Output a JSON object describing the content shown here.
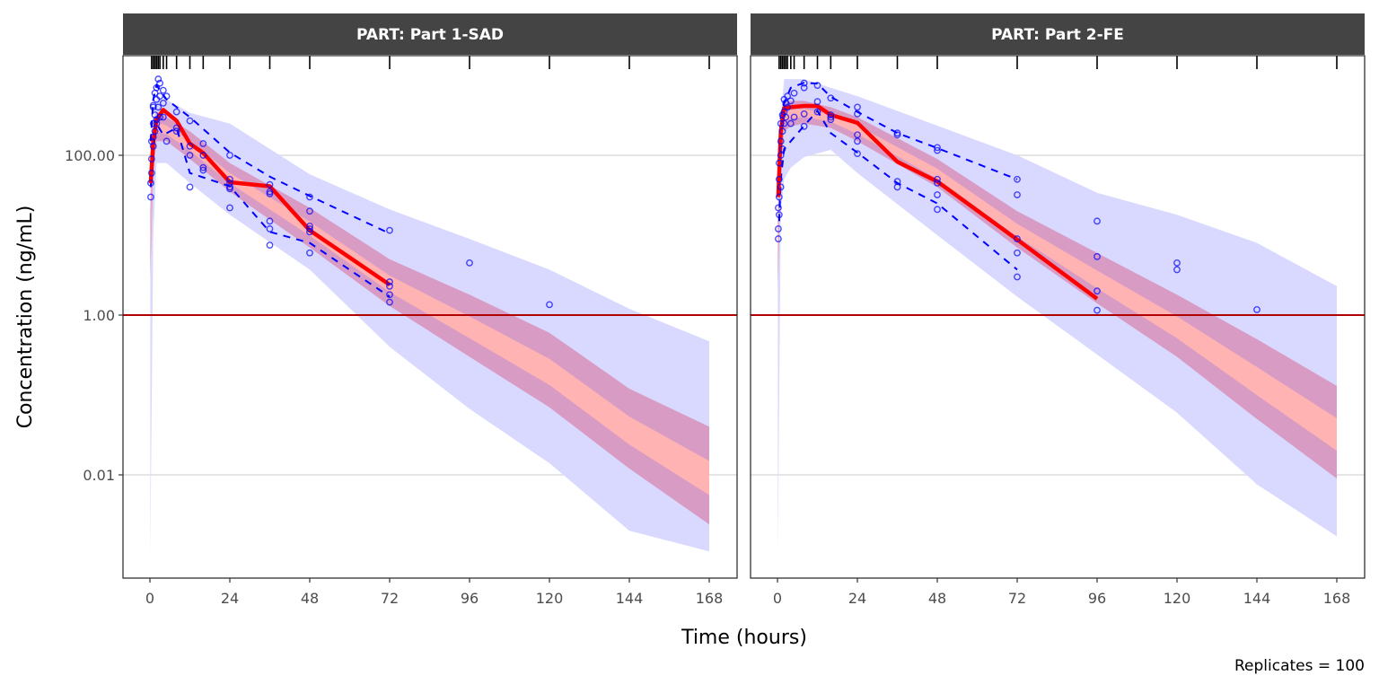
{
  "chart_data": {
    "type": "line",
    "subtype": "visual predictive check",
    "xlabel": "Time (hours)",
    "ylabel": "Concentration (ng/mL)",
    "caption": "Replicates = 100",
    "x_ticks": [
      0,
      24,
      48,
      72,
      96,
      120,
      144,
      168
    ],
    "x_tick_labels": [
      "0",
      "24",
      "48",
      "72",
      "96",
      "120",
      "144",
      "168"
    ],
    "y_scale": "log10",
    "y_ticks": [
      100,
      1,
      0.01
    ],
    "y_tick_labels": [
      "100.00",
      "1.00",
      "0.01"
    ],
    "xlim": [
      -7,
      177
    ],
    "ylim": [
      0.00051,
      1780
    ],
    "lloq_line": 1,
    "bin_rug_times": [
      0.5,
      1,
      1.5,
      2,
      2.5,
      3,
      4,
      5,
      8,
      12,
      16,
      24,
      36,
      48,
      72,
      96,
      120,
      144,
      168
    ],
    "colors": {
      "strip": "#444444",
      "outer": "#d9d9ff",
      "median_ci": "#d89cc4",
      "median_core": "#ffb3b3",
      "obs_median": "#ff0000",
      "obs_pct": "#0000ff",
      "lloq": "#b00000",
      "grid": "#e5e5e5"
    },
    "panels": [
      {
        "title": "PART: Part 1-SAD",
        "band_t": [
          0.1,
          1,
          2,
          5,
          12,
          24,
          48,
          72,
          96,
          120,
          144,
          168
        ],
        "outer_hi": [
          40,
          250,
          500,
          500,
          340,
          250,
          58,
          21,
          9,
          3.7,
          1.2,
          0.47
        ],
        "outer_lo": [
          0.001,
          10,
          80,
          80,
          45,
          18,
          3.7,
          0.4,
          0.067,
          0.014,
          0.002,
          0.0011
        ],
        "ci_hi": [
          20,
          200,
          350,
          300,
          200,
          80,
          22,
          5,
          1.8,
          0.6,
          0.12,
          0.04
        ],
        "ci_lo": [
          3,
          60,
          150,
          150,
          90,
          35,
          7,
          1.3,
          0.3,
          0.07,
          0.012,
          0.0024
        ],
        "obs_median": {
          "t": [
            0.25,
            1,
            2,
            4,
            8,
            12,
            16,
            24,
            36,
            48,
            72
          ],
          "v": [
            45,
            150,
            280,
            370,
            270,
            140,
            107,
            46,
            41,
            11.5,
            2.4
          ]
        },
        "obs_p95": {
          "t": [
            0.25,
            1,
            2,
            5,
            12,
            24,
            36,
            48,
            72
          ],
          "v": [
            150,
            500,
            750,
            500,
            300,
            108,
            54,
            31,
            10.5
          ]
        },
        "obs_p5": {
          "t": [
            0.25,
            1,
            2,
            4,
            8,
            12,
            24,
            36,
            48,
            72
          ],
          "v": [
            40,
            120,
            250,
            180,
            220,
            60,
            41,
            11,
            8,
            1.7
          ]
        },
        "obs_points": {
          "t": [
            0.25,
            0.25,
            0.5,
            0.5,
            0.5,
            1,
            1,
            1,
            1,
            1,
            1.5,
            1.5,
            1.5,
            2,
            2,
            2,
            2,
            2.5,
            2.5,
            3,
            3,
            3,
            4,
            4,
            4,
            5,
            5,
            8,
            8,
            8,
            12,
            12,
            12,
            12,
            16,
            16,
            16,
            16,
            24,
            24,
            24,
            24,
            24,
            24,
            36,
            36,
            36,
            36,
            36,
            36,
            48,
            48,
            48,
            48,
            48,
            48,
            72,
            72,
            72,
            72,
            72,
            96,
            120
          ],
          "v": [
            30,
            45,
            60,
            90,
            150,
            170,
            250,
            400,
            420,
            130,
            320,
            600,
            200,
            700,
            500,
            280,
            250,
            900,
            400,
            800,
            550,
            300,
            650,
            450,
            300,
            550,
            150,
            350,
            220,
            200,
            270,
            130,
            100,
            40,
            140,
            100,
            70,
            65,
            100,
            50,
            45,
            40,
            38,
            22,
            43,
            33,
            35,
            15,
            12,
            7.5,
            30,
            20,
            12,
            13,
            11,
            6,
            11.5,
            2.6,
            2.3,
            1.8,
            1.45,
            4.5,
            1.35
          ]
        }
      },
      {
        "title": "PART: Part 2-FE",
        "band_t": [
          0.1,
          1,
          2,
          4,
          8,
          16,
          24,
          48,
          72,
          96,
          120,
          144,
          168
        ],
        "outer_hi": [
          30,
          300,
          900,
          900,
          900,
          700,
          550,
          235,
          100,
          34,
          18,
          8,
          2.3
        ],
        "outer_lo": [
          0.001,
          20,
          50,
          70,
          95,
          117,
          60,
          10,
          1.7,
          0.32,
          0.06,
          0.0076,
          0.0017
        ],
        "ci_hi": [
          15,
          250,
          450,
          480,
          480,
          400,
          300,
          90,
          20,
          6,
          1.8,
          0.5,
          0.13
        ],
        "ci_lo": [
          2,
          80,
          200,
          230,
          250,
          220,
          150,
          40,
          7,
          1.4,
          0.3,
          0.05,
          0.009
        ],
        "obs_median": {
          "t": [
            0.25,
            1,
            2,
            4,
            8,
            12,
            16,
            24,
            36,
            48,
            72,
            96
          ],
          "v": [
            30,
            200,
            390,
            400,
            415,
            415,
            320,
            255,
            83,
            47,
            8.8,
            1.6
          ]
        },
        "obs_p95": {
          "t": [
            0.25,
            1,
            2,
            4,
            8,
            12,
            16,
            24,
            36,
            48,
            72
          ],
          "v": [
            60,
            300,
            450,
            700,
            810,
            790,
            540,
            350,
            190,
            123,
            50
          ]
        },
        "obs_p5": {
          "t": [
            0.5,
            1,
            2,
            4,
            8,
            12,
            16,
            24,
            36,
            48,
            72
          ],
          "v": [
            15,
            50,
            120,
            150,
            235,
            360,
            190,
            108,
            45,
            25,
            3.7
          ]
        },
        "obs_points": {
          "t": [
            0.25,
            0.25,
            0.25,
            0.5,
            0.5,
            0.5,
            0.5,
            1,
            1,
            1,
            1,
            1.5,
            1.5,
            1.5,
            2,
            2,
            2,
            2.5,
            2.5,
            3,
            3,
            4,
            4,
            5,
            5,
            8,
            8,
            8,
            8,
            12,
            12,
            12,
            16,
            16,
            16,
            16,
            24,
            24,
            24,
            24,
            24,
            36,
            36,
            36,
            36,
            48,
            48,
            48,
            48,
            48,
            48,
            72,
            72,
            72,
            72,
            72,
            96,
            96,
            96,
            96,
            120,
            120,
            144
          ],
          "v": [
            9,
            12,
            22,
            30,
            18,
            50,
            80,
            100,
            150,
            250,
            40,
            200,
            320,
            120,
            500,
            350,
            250,
            450,
            300,
            400,
            550,
            480,
            250,
            600,
            300,
            800,
            700,
            330,
            230,
            750,
            470,
            350,
            520,
            320,
            300,
            280,
            400,
            330,
            180,
            150,
            105,
            190,
            180,
            47,
            40,
            125,
            115,
            50,
            45,
            32,
            21,
            50,
            32,
            9,
            6,
            3,
            15,
            5.4,
            2,
            1.15,
            4.5,
            3.7,
            1.17
          ]
        }
      }
    ]
  }
}
